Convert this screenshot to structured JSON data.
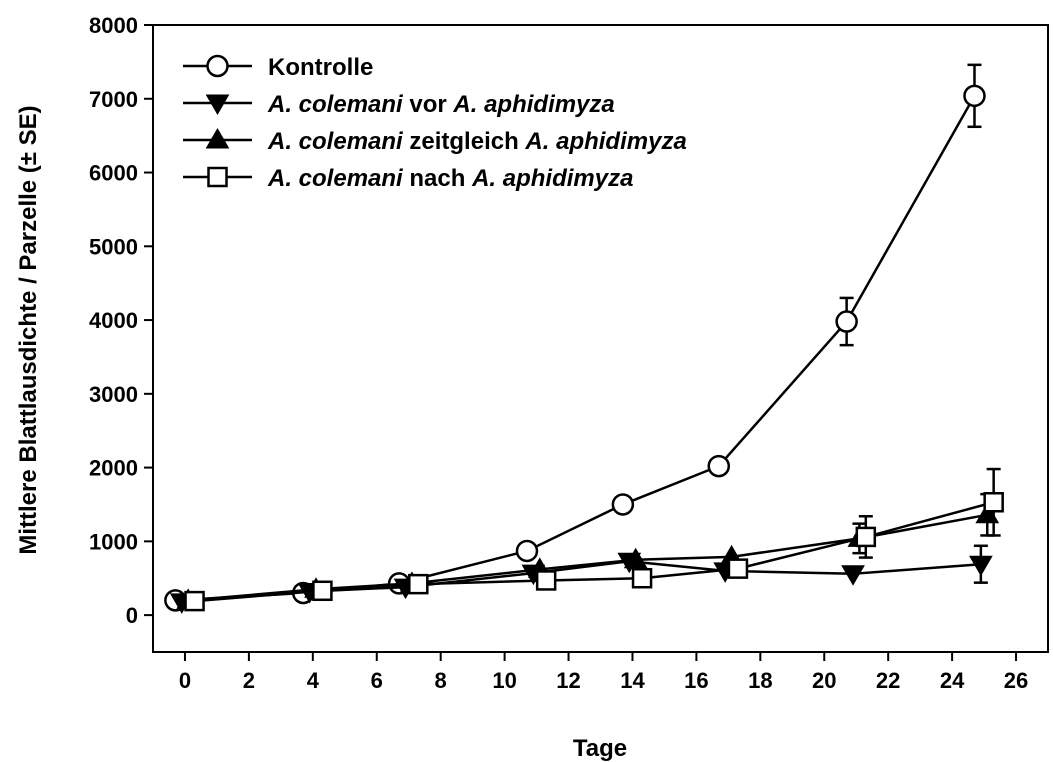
{
  "chart_data": {
    "type": "line",
    "title": "",
    "xlabel": "Tage",
    "ylabel": "Mittlere Blattlausdichte / Parzelle (± SE)",
    "xlim": [
      -1,
      27
    ],
    "ylim": [
      -500,
      8000
    ],
    "xticks": [
      0,
      2,
      4,
      6,
      8,
      10,
      12,
      14,
      16,
      18,
      20,
      22,
      24,
      26
    ],
    "yticks": [
      0,
      1000,
      2000,
      3000,
      4000,
      5000,
      6000,
      7000,
      8000
    ],
    "grid": false,
    "legend_position": "top-left",
    "series": [
      {
        "name": "Kontrolle",
        "marker": "circle-open",
        "legend_parts": [
          {
            "text": "Kontrolle",
            "italic": false
          }
        ],
        "points": [
          {
            "x": -0.3,
            "y": 200,
            "err": 0
          },
          {
            "x": 3.7,
            "y": 300,
            "err": 0
          },
          {
            "x": 6.7,
            "y": 430,
            "err": 0
          },
          {
            "x": 10.7,
            "y": 870,
            "err": 0
          },
          {
            "x": 13.7,
            "y": 1500,
            "err": 0
          },
          {
            "x": 16.7,
            "y": 2020,
            "err": 100
          },
          {
            "x": 20.7,
            "y": 3980,
            "err": 320
          },
          {
            "x": 24.7,
            "y": 7040,
            "err": 420
          }
        ]
      },
      {
        "name": "A. colemani vor A. aphidimyza",
        "marker": "triangle-down-filled",
        "legend_parts": [
          {
            "text": "A. colemani",
            "italic": true
          },
          {
            "text": " vor ",
            "italic": false
          },
          {
            "text": "A. aphidimyza",
            "italic": true
          }
        ],
        "points": [
          {
            "x": -0.1,
            "y": 180,
            "err": 0
          },
          {
            "x": 3.9,
            "y": 320,
            "err": 0
          },
          {
            "x": 6.9,
            "y": 380,
            "err": 0
          },
          {
            "x": 10.9,
            "y": 570,
            "err": 0
          },
          {
            "x": 13.9,
            "y": 730,
            "err": 0
          },
          {
            "x": 16.9,
            "y": 600,
            "err": 0
          },
          {
            "x": 20.9,
            "y": 560,
            "err": 0
          },
          {
            "x": 24.9,
            "y": 690,
            "err": 250
          }
        ]
      },
      {
        "name": "A. colemani zeitgleich A. aphidimyza",
        "marker": "triangle-up-filled",
        "legend_parts": [
          {
            "text": "A. colemani",
            "italic": true
          },
          {
            "text": " zeitgleich ",
            "italic": false
          },
          {
            "text": "A. aphidimyza",
            "italic": true
          }
        ],
        "points": [
          {
            "x": 0.1,
            "y": 200,
            "err": 0
          },
          {
            "x": 4.1,
            "y": 350,
            "err": 0
          },
          {
            "x": 7.1,
            "y": 430,
            "err": 0
          },
          {
            "x": 11.1,
            "y": 620,
            "err": 0
          },
          {
            "x": 14.1,
            "y": 750,
            "err": 0
          },
          {
            "x": 17.1,
            "y": 790,
            "err": 0
          },
          {
            "x": 21.1,
            "y": 1040,
            "err": 200
          },
          {
            "x": 25.1,
            "y": 1360,
            "err": 280
          }
        ]
      },
      {
        "name": "A. colemani nach A. aphidimyza",
        "marker": "square-open",
        "legend_parts": [
          {
            "text": "A. colemani",
            "italic": true
          },
          {
            "text": " nach ",
            "italic": false
          },
          {
            "text": "A. aphidimyza",
            "italic": true
          }
        ],
        "points": [
          {
            "x": 0.3,
            "y": 190,
            "err": 0
          },
          {
            "x": 4.3,
            "y": 330,
            "err": 0
          },
          {
            "x": 7.3,
            "y": 420,
            "err": 0
          },
          {
            "x": 11.3,
            "y": 470,
            "err": 0
          },
          {
            "x": 14.3,
            "y": 500,
            "err": 0
          },
          {
            "x": 17.3,
            "y": 630,
            "err": 0
          },
          {
            "x": 21.3,
            "y": 1060,
            "err": 280
          },
          {
            "x": 25.3,
            "y": 1530,
            "err": 450
          }
        ]
      }
    ]
  }
}
